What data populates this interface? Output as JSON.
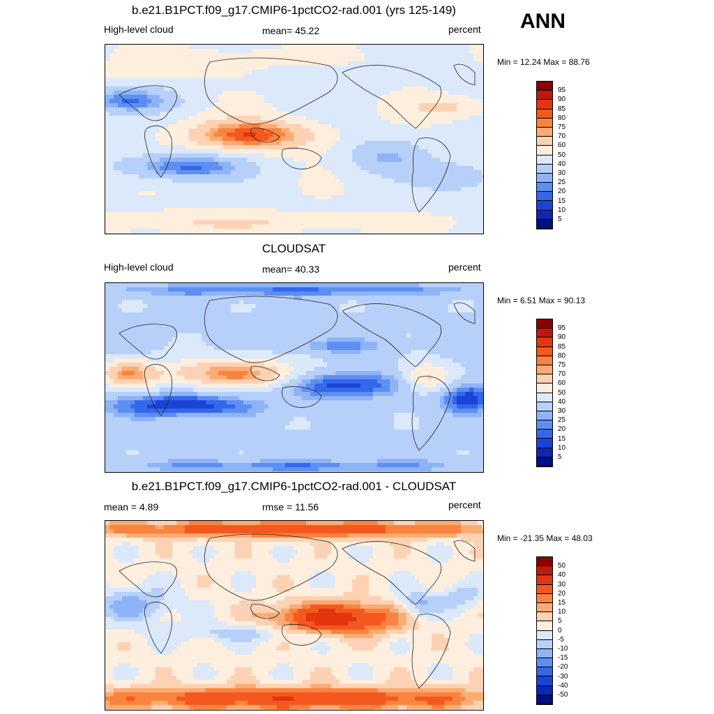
{
  "season": "ANN",
  "panels": [
    {
      "title": "b.e21.B1PCT.f09_g17.CMIP6-1pctCO2-rad.001 (yrs 125-149)",
      "left": "High-level cloud",
      "center": "mean=  45.22",
      "right": "percent",
      "minmax": "Min =  12.24 Max =  88.76",
      "levels": [
        "95",
        "90",
        "85",
        "80",
        "75",
        "70",
        "60",
        "50",
        "40",
        "30",
        "25",
        "20",
        "15",
        "10",
        "5"
      ],
      "colors": [
        "#8b0000",
        "#c0180a",
        "#e23510",
        "#f5581e",
        "#f8843f",
        "#fbab74",
        "#fdd1b3",
        "#fdeede",
        "#dbe9fb",
        "#b7d0fa",
        "#8eb4f7",
        "#5d8ff2",
        "#3567ea",
        "#1a44d8",
        "#0c27b6",
        "#000f82"
      ],
      "field": "model"
    },
    {
      "title": "CLOUDSAT",
      "left": "High-level cloud",
      "center": "mean=  40.33",
      "right": "percent",
      "minmax": "Min =   6.51 Max =  90.13",
      "levels": [
        "95",
        "90",
        "85",
        "80",
        "75",
        "70",
        "60",
        "50",
        "40",
        "30",
        "25",
        "20",
        "15",
        "10",
        "5"
      ],
      "colors": [
        "#8b0000",
        "#c0180a",
        "#e23510",
        "#f5581e",
        "#f8843f",
        "#fbab74",
        "#fdd1b3",
        "#fdeede",
        "#dbe9fb",
        "#b7d0fa",
        "#8eb4f7",
        "#5d8ff2",
        "#3567ea",
        "#1a44d8",
        "#0c27b6",
        "#000f82"
      ],
      "field": "obs"
    },
    {
      "title": "b.e21.B1PCT.f09_g17.CMIP6-1pctCO2-rad.001 - CLOUDSAT",
      "left": "mean =   4.89",
      "center": "rmse =  11.56",
      "right": "percent",
      "minmax": "Min = -21.35 Max =  48.03",
      "levels": [
        "50",
        "40",
        "30",
        "20",
        "15",
        "10",
        "5",
        "0",
        "-5",
        "-10",
        "-15",
        "-20",
        "-30",
        "-40",
        "-50"
      ],
      "colors": [
        "#8b0000",
        "#c0180a",
        "#e23510",
        "#f5581e",
        "#f8843f",
        "#fbab74",
        "#fdd1b3",
        "#fdeede",
        "#dbe9fb",
        "#b7d0fa",
        "#8eb4f7",
        "#5d8ff2",
        "#3567ea",
        "#1a44d8",
        "#0c27b6",
        "#000f82"
      ],
      "field": "diff"
    }
  ]
}
